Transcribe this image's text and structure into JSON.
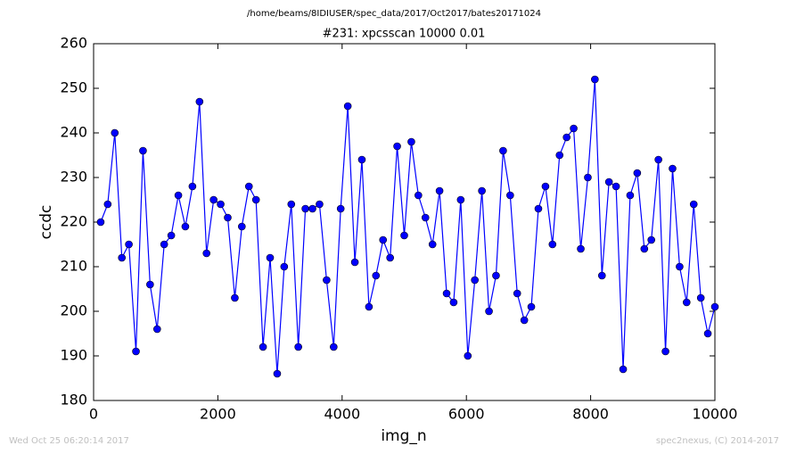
{
  "chart_data": {
    "type": "line",
    "suptitle": "/home/beams/8IDIUSER/spec_data/2017/Oct2017/bates20171024",
    "title": "#231: xpcsscan 10000 0.01",
    "x_label": "img_n",
    "y_label": "ccdc",
    "footer_left": "Wed Oct 25 06:20:14 2017",
    "footer_right": "spec2nexus, (C) 2014-2017",
    "color": "#0000ff",
    "marker": "circle",
    "grid": false,
    "x": [
      114,
      227,
      341,
      455,
      568,
      682,
      795,
      909,
      1023,
      1136,
      1250,
      1364,
      1477,
      1591,
      1705,
      1818,
      1932,
      2045,
      2159,
      2273,
      2386,
      2500,
      2614,
      2727,
      2841,
      2955,
      3068,
      3182,
      3295,
      3409,
      3523,
      3636,
      3750,
      3864,
      3977,
      4091,
      4205,
      4318,
      4432,
      4545,
      4659,
      4773,
      4886,
      5000,
      5114,
      5227,
      5341,
      5455,
      5568,
      5682,
      5795,
      5909,
      6023,
      6136,
      6250,
      6364,
      6477,
      6591,
      6705,
      6818,
      6932,
      7045,
      7159,
      7273,
      7386,
      7500,
      7614,
      7727,
      7841,
      7955,
      8068,
      8182,
      8295,
      8409,
      8523,
      8636,
      8750,
      8864,
      8977,
      9091,
      9205,
      9318,
      9432,
      9545,
      9659,
      9773,
      9886,
      10000
    ],
    "values": [
      220,
      224,
      240,
      212,
      215,
      191,
      236,
      206,
      196,
      215,
      217,
      226,
      219,
      228,
      247,
      213,
      225,
      224,
      221,
      203,
      219,
      228,
      225,
      192,
      212,
      186,
      210,
      224,
      192,
      223,
      223,
      224,
      207,
      192,
      223,
      246,
      211,
      234,
      201,
      208,
      216,
      212,
      237,
      217,
      238,
      226,
      221,
      215,
      227,
      204,
      202,
      225,
      190,
      207,
      227,
      200,
      208,
      236,
      226,
      204,
      198,
      201,
      223,
      228,
      215,
      235,
      239,
      241,
      214,
      230,
      252,
      208,
      229,
      228,
      187,
      226,
      231,
      214,
      216,
      234,
      191,
      232,
      210,
      202,
      224,
      203,
      195,
      201
    ],
    "xlim": [
      0,
      10000
    ],
    "xticks": [
      0,
      2000,
      4000,
      6000,
      8000,
      10000
    ],
    "ylim": [
      180,
      260
    ],
    "yticks": [
      180,
      190,
      200,
      210,
      220,
      230,
      240,
      250,
      260
    ]
  }
}
